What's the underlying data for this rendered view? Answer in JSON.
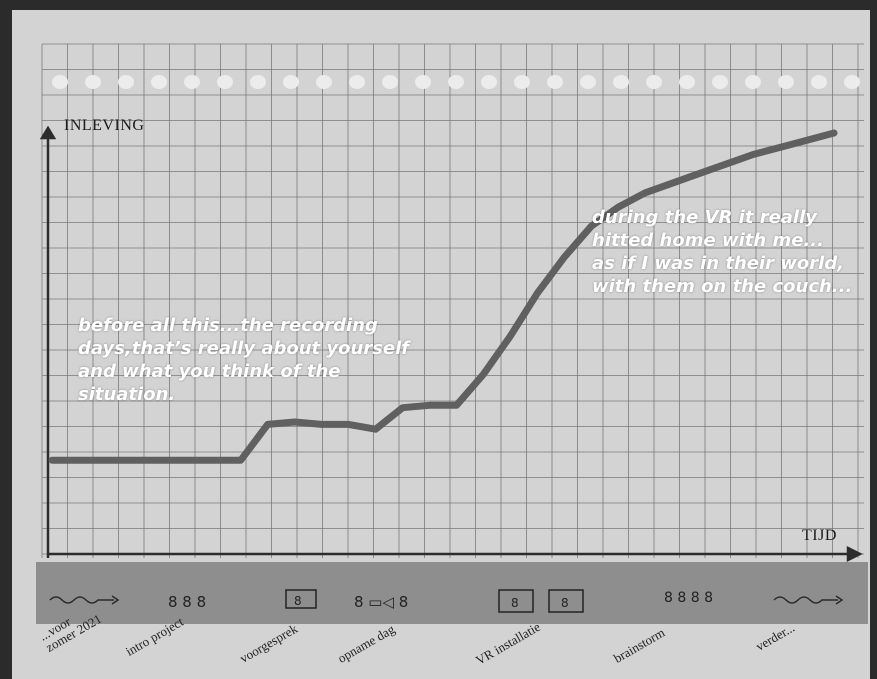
{
  "chart_data": {
    "type": "line",
    "ylabel": "INLEVING",
    "xlabel": "TIJD",
    "x": [
      0,
      1,
      2,
      3,
      4,
      5,
      6,
      7,
      8,
      9,
      10,
      11,
      12,
      13,
      14,
      15,
      16,
      17,
      18,
      19,
      20,
      21,
      22,
      23,
      24,
      25,
      26,
      27,
      28,
      29
    ],
    "series": [
      {
        "values": [
          2,
          2,
          2,
          2,
          2,
          2,
          2,
          2,
          3.5,
          3.6,
          3.5,
          3.5,
          3.3,
          4.2,
          4.3,
          4.3,
          5.6,
          7.2,
          9.0,
          10.5,
          11.8,
          12.6,
          13.2,
          13.6,
          14.0,
          14.4,
          14.8,
          15.1,
          15.4,
          15.7
        ]
      }
    ],
    "ylim": [
      0,
      17
    ],
    "xlim": [
      0,
      29
    ],
    "grid": true,
    "annotations": [
      "before all this...the recording\ndays,that’s really about yourself\nand what you think of the\nsituation.",
      "during the VR it really\nhitted home with me...\nas if I was in their world,\nwith them on the couch..."
    ],
    "phases": [
      "...voor\nzomer 2021",
      "intro project",
      "voorgesprek",
      "opname dag",
      "VR installatie",
      "brainstorm",
      "verder..."
    ],
    "colors": {
      "paper": "#d3d3d3",
      "grid": "#7a7a7a",
      "line": "#606060",
      "strip": "#8e8e8e"
    }
  }
}
